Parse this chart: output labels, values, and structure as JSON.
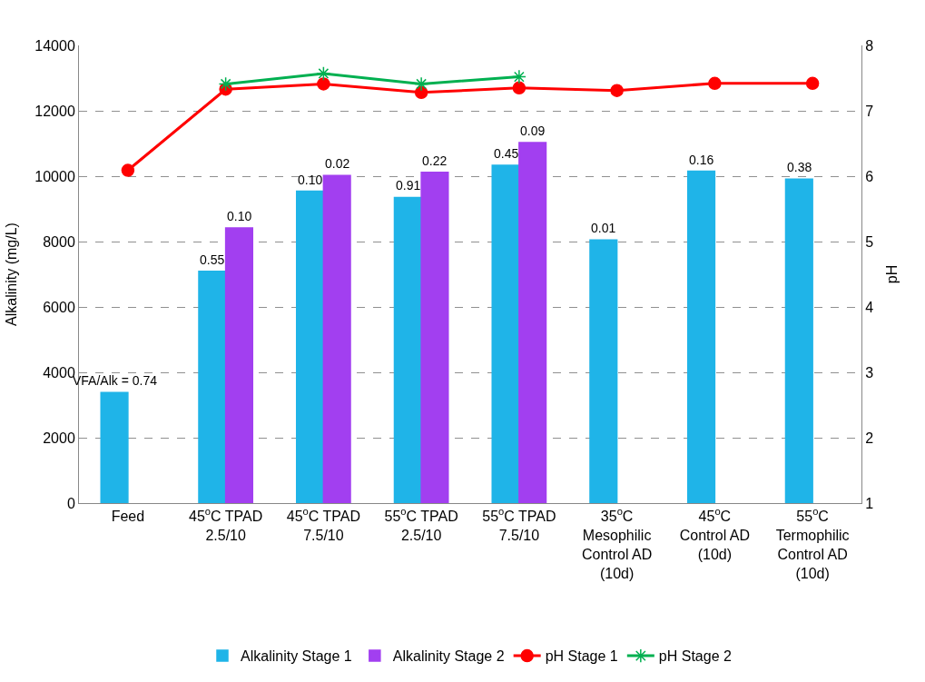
{
  "chart_data": {
    "type": "bar",
    "ylabel": "Alkalinity (mg/L)",
    "y2label": "pH",
    "categories": [
      "Feed",
      "45$^{o}$C TPAD\n2.5/10",
      "45$^{o}$C TPAD\n7.5/10",
      "55$^{o}$C TPAD\n2.5/10",
      "55$^{o}$C TPAD\n7.5/10",
      "35$^{o}$C\nMesophilic\nControl AD\n(10d)",
      "45$^{o}$C\nControl AD\n(10d)",
      "55$^{o}$C\nTermophilic\nControl AD\n(10d)"
    ],
    "series": [
      {
        "name": "Alkalinity Stage 1",
        "color": "#1fb4e8",
        "values": [
          3380,
          7090,
          9540,
          9350,
          10330,
          8050,
          10150,
          9910
        ]
      },
      {
        "name": "Alkalinity Stage 2",
        "color": "#a23ff0",
        "values": [
          null,
          8420,
          10020,
          10120,
          11030,
          null,
          null,
          null
        ]
      },
      {
        "name": "pH Stage 1",
        "type": "line",
        "axis": "y2",
        "color": "#ff0000",
        "marker": "circle",
        "values": [
          6.09,
          7.33,
          7.41,
          7.28,
          7.35,
          7.31,
          7.42,
          7.42
        ]
      },
      {
        "name": "pH Stage 2",
        "type": "line",
        "axis": "y2",
        "color": "#00b050",
        "marker": "cross",
        "values": [
          null,
          7.41,
          7.57,
          7.41,
          7.52,
          null,
          null,
          null
        ]
      }
    ],
    "annotations": [
      {
        "text": "VFA/Alk = 0.74",
        "x": "Feed",
        "y": 3380
      },
      {
        "text": "0.55",
        "x": "45$^{o}$C TPAD\n2.5/10",
        "y": 7090
      },
      {
        "text": "0.10",
        "x": "45$^{o}$C TPAD\n2.5/10",
        "y": 8420
      },
      {
        "text": "0.10",
        "x": "45$^{o}$C TPAD\n7.5/10",
        "y": 9540
      },
      {
        "text": "0.02",
        "x": "45$^{o}$C TPAD\n7.5/10",
        "y": 10020
      },
      {
        "text": "0.91",
        "x": "55$^{o}$C TPAD\n2.5/10",
        "y": 9350
      },
      {
        "text": "0.22",
        "x": "55$^{o}$C TPAD\n2.5/10",
        "y": 10120
      },
      {
        "text": "0.45",
        "x": "55$^{o}$C TPAD\n7.5/10",
        "y": 10330
      },
      {
        "text": "0.09",
        "x": "55$^{o}$C TPAD\n7.5/10",
        "y": 11030
      },
      {
        "text": "0.01",
        "x": "35$^{o}$C\nMesophilic\nControl AD\n(10d)",
        "y": 8050
      },
      {
        "text": "0.16",
        "x": "45$^{o}$C\nControl AD\n(10d)",
        "y": 10150
      },
      {
        "text": "0.38",
        "x": "55$^{o}$C\nTermophilic\nControl AD\n(10d)",
        "y": 9910
      }
    ],
    "ylim": [
      0,
      14000
    ],
    "yticks": [
      0,
      2000,
      4000,
      6000,
      8000,
      10000,
      12000,
      14000
    ],
    "y2lim": [
      1,
      8
    ],
    "y2ticks": [
      1,
      2,
      3,
      4,
      5,
      6,
      7,
      8
    ],
    "grid": "y",
    "legend": "bottom"
  }
}
